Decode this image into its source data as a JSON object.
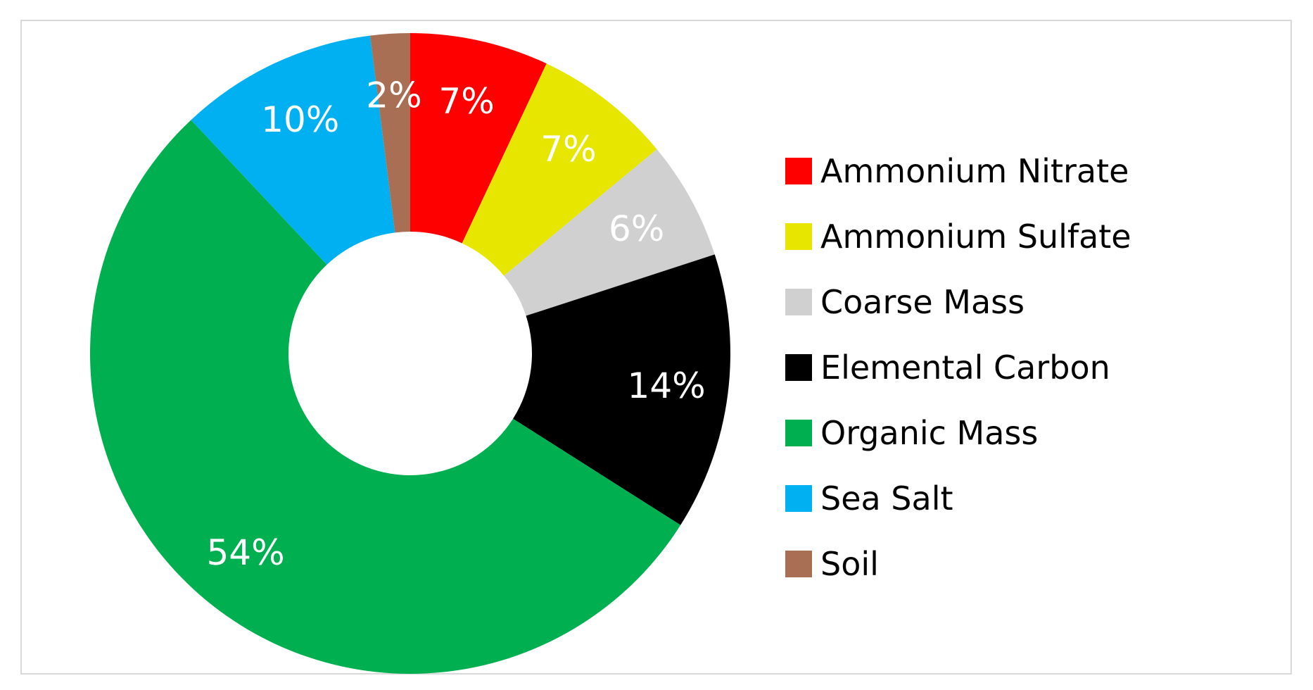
{
  "chart_data": {
    "type": "pie",
    "variant": "donut",
    "title": "",
    "categories": [
      "Ammonium Nitrate",
      "Ammonium Sulfate",
      "Coarse Mass",
      "Elemental Carbon",
      "Organic Mass",
      "Sea Salt",
      "Soil"
    ],
    "values": [
      7,
      7,
      6,
      14,
      54,
      10,
      2
    ],
    "data_labels": [
      "7%",
      "7%",
      "6%",
      "14%",
      "54%",
      "10%",
      "2%"
    ],
    "colors": [
      "#ff0000",
      "#e6e600",
      "#d0d0d0",
      "#000000",
      "#00b050",
      "#00b0f0",
      "#a86f55"
    ],
    "legend_placement": "right"
  }
}
